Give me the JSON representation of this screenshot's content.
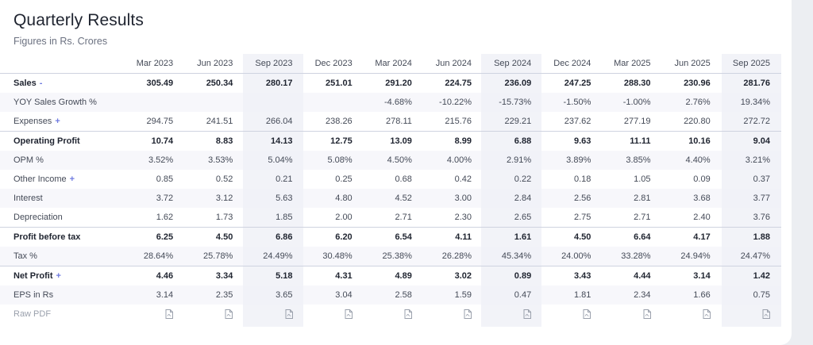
{
  "title": "Quarterly Results",
  "subtitle": "Figures in Rs. Crores",
  "periods": [
    "Mar 2023",
    "Jun 2023",
    "Sep 2023",
    "Dec 2023",
    "Mar 2024",
    "Jun 2024",
    "Sep 2024",
    "Dec 2024",
    "Mar 2025",
    "Jun 2025",
    "Sep 2025"
  ],
  "rows": [
    {
      "label": "Sales",
      "toggle": "-",
      "values": [
        "305.49",
        "250.34",
        "280.17",
        "251.01",
        "291.20",
        "224.75",
        "236.09",
        "247.25",
        "288.30",
        "230.96",
        "281.76"
      ]
    },
    {
      "label": "YOY Sales Growth %",
      "values": [
        "",
        "",
        "",
        "",
        "-4.68%",
        "-10.22%",
        "-15.73%",
        "-1.50%",
        "-1.00%",
        "2.76%",
        "19.34%"
      ]
    },
    {
      "label": "Expenses",
      "toggle": "+",
      "values": [
        "294.75",
        "241.51",
        "266.04",
        "238.26",
        "278.11",
        "215.76",
        "229.21",
        "237.62",
        "277.19",
        "220.80",
        "272.72"
      ]
    },
    {
      "label": "Operating Profit",
      "values": [
        "10.74",
        "8.83",
        "14.13",
        "12.75",
        "13.09",
        "8.99",
        "6.88",
        "9.63",
        "11.11",
        "10.16",
        "9.04"
      ]
    },
    {
      "label": "OPM %",
      "values": [
        "3.52%",
        "3.53%",
        "5.04%",
        "5.08%",
        "4.50%",
        "4.00%",
        "2.91%",
        "3.89%",
        "3.85%",
        "4.40%",
        "3.21%"
      ]
    },
    {
      "label": "Other Income",
      "toggle": "+",
      "values": [
        "0.85",
        "0.52",
        "0.21",
        "0.25",
        "0.68",
        "0.42",
        "0.22",
        "0.18",
        "1.05",
        "0.09",
        "0.37"
      ]
    },
    {
      "label": "Interest",
      "values": [
        "3.72",
        "3.12",
        "5.63",
        "4.80",
        "4.52",
        "3.00",
        "2.84",
        "2.56",
        "2.81",
        "3.68",
        "3.77"
      ]
    },
    {
      "label": "Depreciation",
      "values": [
        "1.62",
        "1.73",
        "1.85",
        "2.00",
        "2.71",
        "2.30",
        "2.65",
        "2.75",
        "2.71",
        "2.40",
        "3.76"
      ]
    },
    {
      "label": "Profit before tax",
      "values": [
        "6.25",
        "4.50",
        "6.86",
        "6.20",
        "6.54",
        "4.11",
        "1.61",
        "4.50",
        "6.64",
        "4.17",
        "1.88"
      ]
    },
    {
      "label": "Tax %",
      "values": [
        "28.64%",
        "25.78%",
        "24.49%",
        "30.48%",
        "25.38%",
        "26.28%",
        "45.34%",
        "24.00%",
        "33.28%",
        "24.94%",
        "24.47%"
      ]
    },
    {
      "label": "Net Profit",
      "toggle": "+",
      "values": [
        "4.46",
        "3.34",
        "5.18",
        "4.31",
        "4.89",
        "3.02",
        "0.89",
        "3.43",
        "4.44",
        "3.14",
        "1.42"
      ]
    },
    {
      "label": "EPS in Rs",
      "values": [
        "3.14",
        "2.35",
        "3.65",
        "3.04",
        "2.58",
        "1.59",
        "0.47",
        "1.81",
        "2.34",
        "1.66",
        "0.75"
      ]
    }
  ],
  "raw_pdf_label": "Raw PDF",
  "icons": {
    "toggle_accent": "#6f7be0",
    "pdf": "pdf-document-icon"
  }
}
